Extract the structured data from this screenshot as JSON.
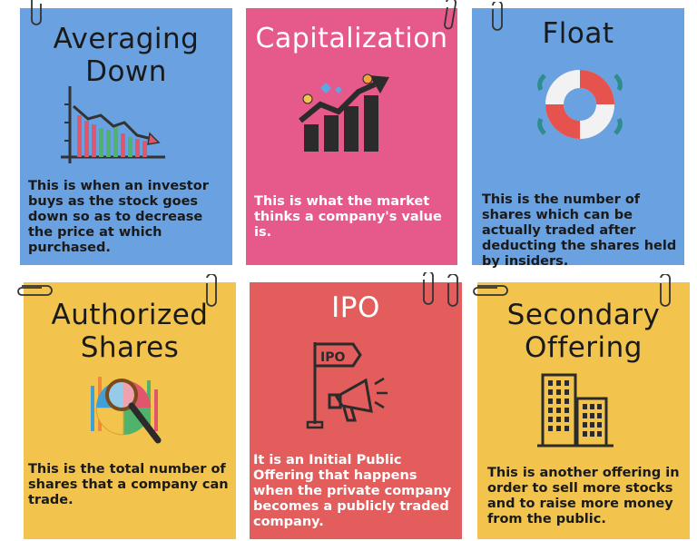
{
  "colors": {
    "blue": "#6aa1e0",
    "pink": "#e55a8a",
    "yellow": "#f2c44e",
    "red": "#e35d5d"
  },
  "cards": [
    {
      "title_line1": "Averaging",
      "title_line2": "Down",
      "desc": "This is when an investor buys as the stock goes down so as to decrease the price at which purchased.",
      "icon": "declining-chart-icon"
    },
    {
      "title_line1": "Capitalization",
      "desc": "This is what the market thinks a company's value is.",
      "icon": "rising-bar-chart-icon"
    },
    {
      "title_line1": "Float",
      "desc": "This is the number of shares which can be actually traded after deducting the shares held by insiders.",
      "icon": "lifebuoy-icon"
    },
    {
      "title_line1": "Authorized",
      "title_line2": "Shares",
      "desc": "This is the total number of shares that a company can trade.",
      "icon": "magnifier-pie-chart-icon"
    },
    {
      "title_line1": "IPO",
      "desc": "It is an Initial Public Offering that happens when the private company becomes a publicly traded company.",
      "icon": "ipo-flag-megaphone-icon",
      "flag_label": "IPO"
    },
    {
      "title_line1": "Secondary",
      "title_line2": "Offering",
      "desc": "This is another offering in order to sell more stocks and to raise more money from the public.",
      "icon": "office-buildings-icon"
    }
  ]
}
